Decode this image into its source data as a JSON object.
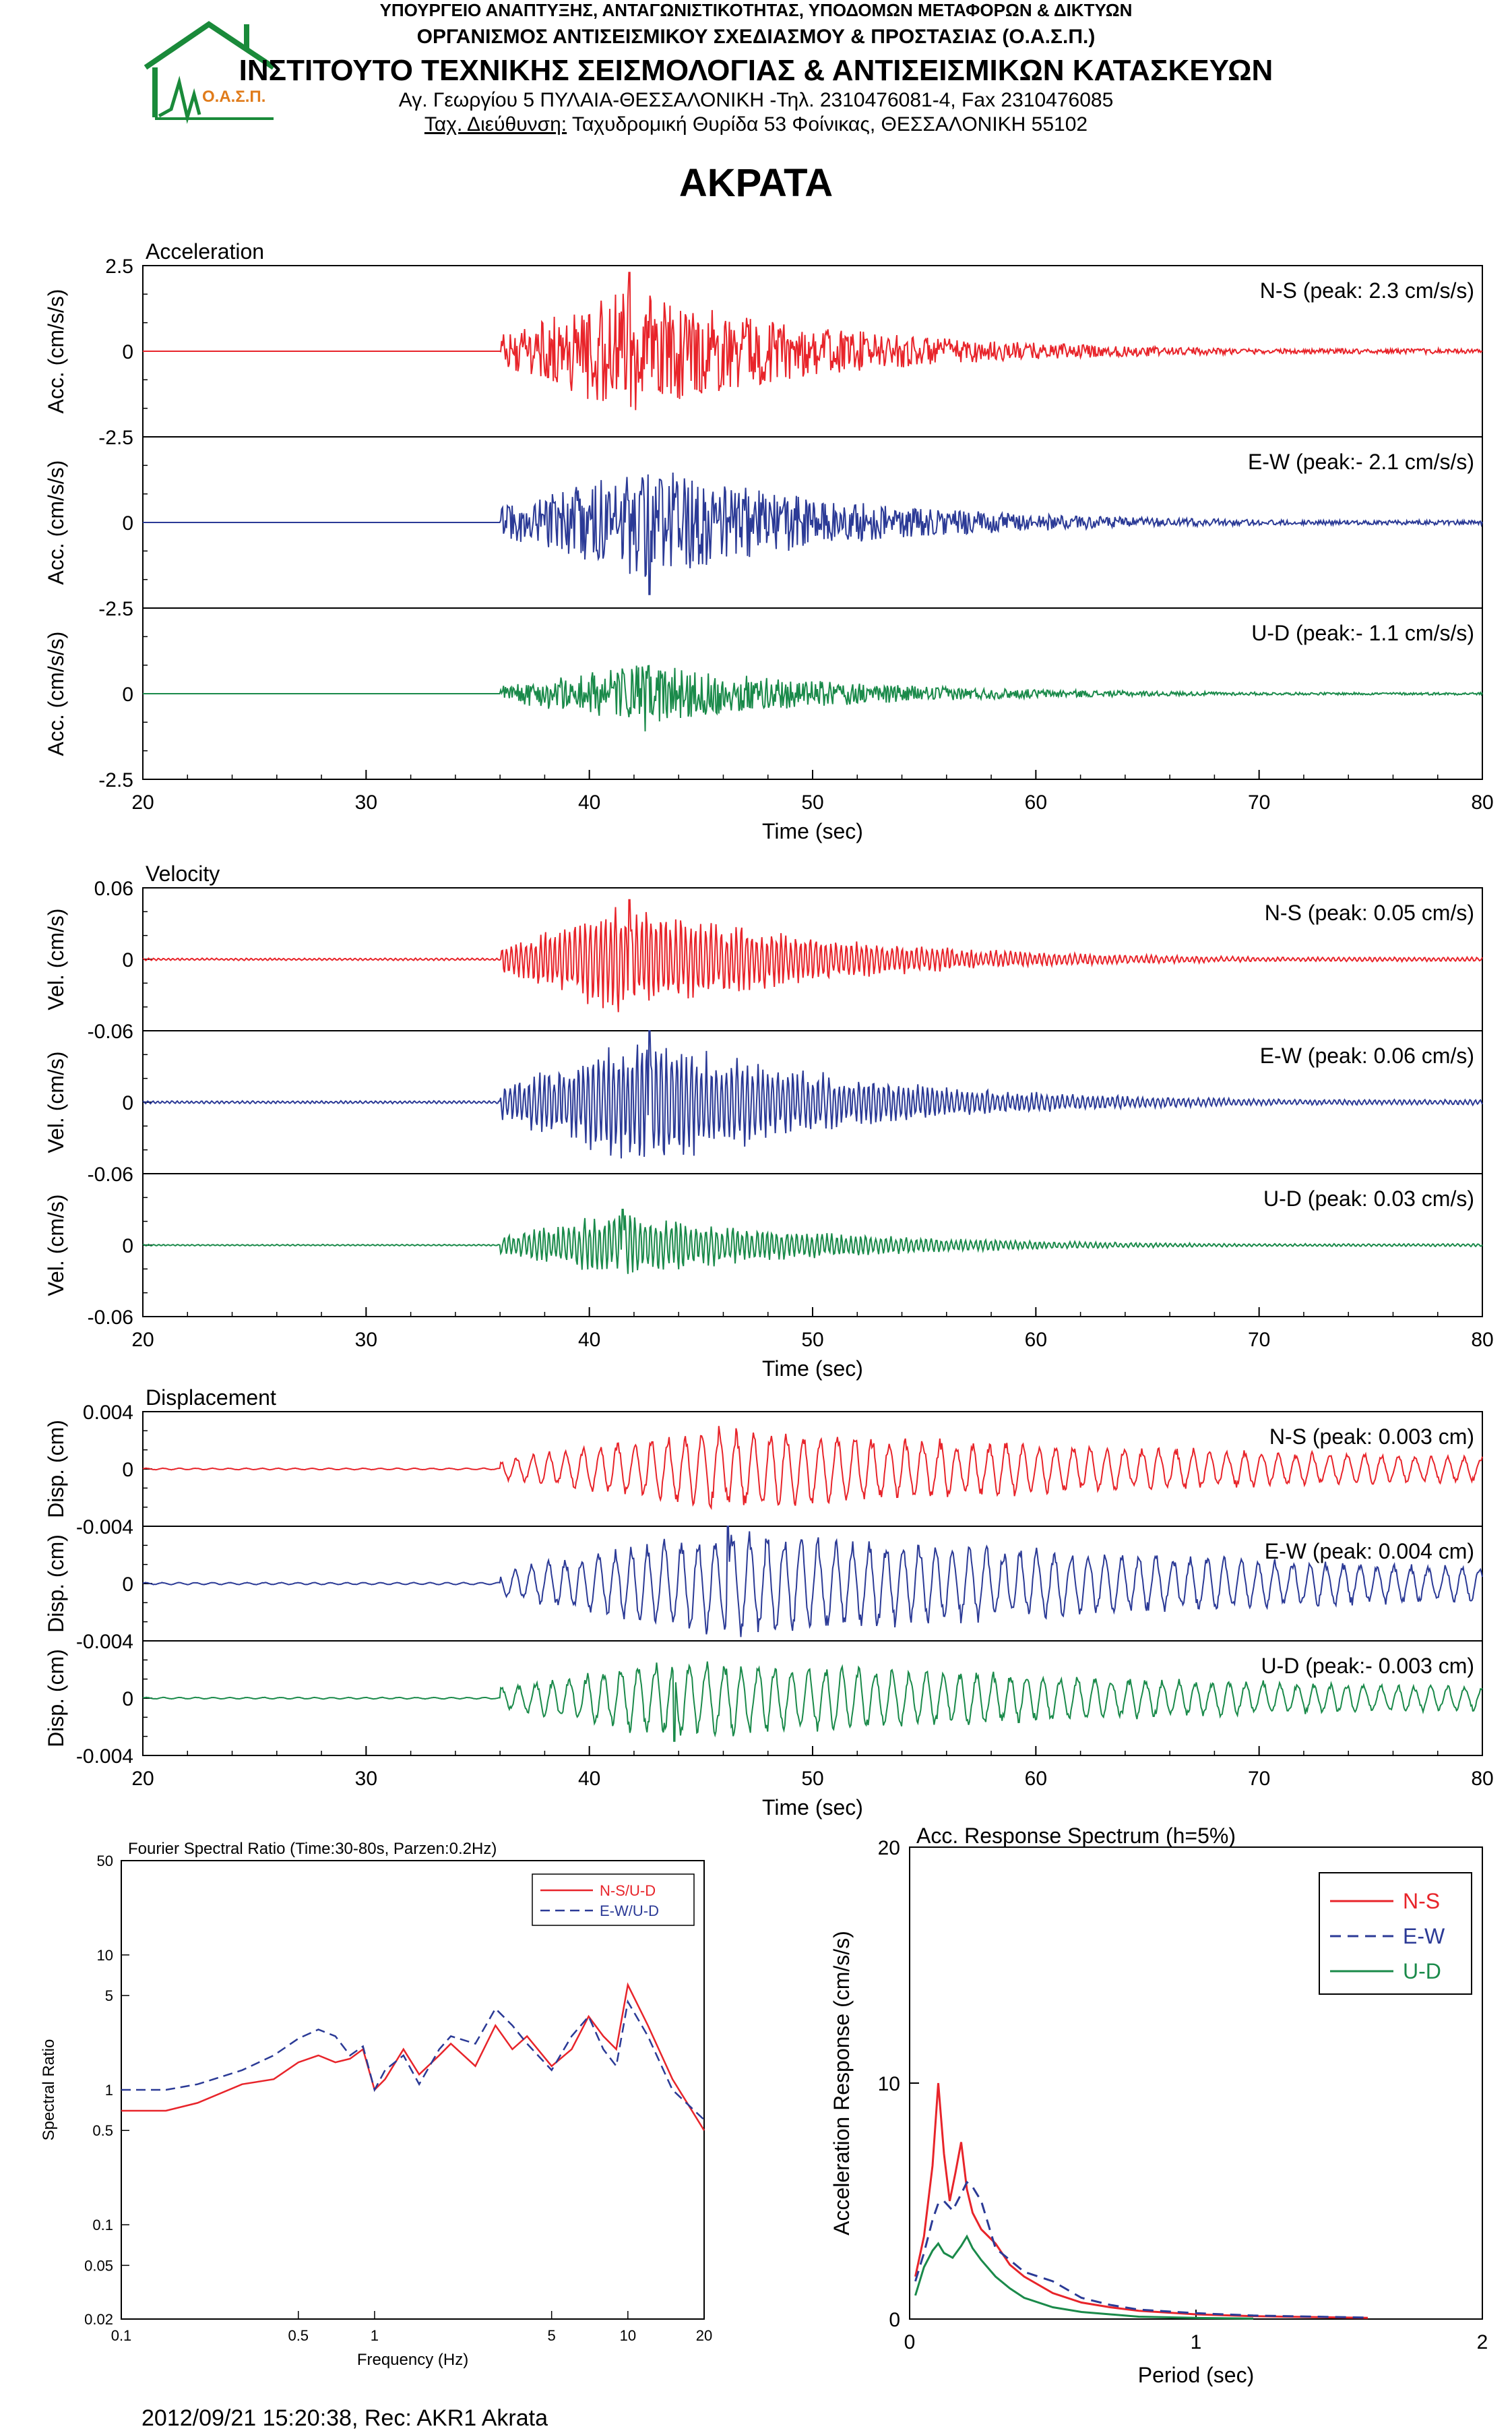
{
  "header": {
    "line1": "ΥΠΟΥΡΓΕΙΟ ΑΝΑΠΤΥΞΗΣ, ΑΝΤΑΓΩΝΙΣΤΙΚΟΤΗΤΑΣ, ΥΠΟΔΟΜΩΝ ΜΕΤΑΦΟΡΩΝ & ΔΙΚΤΥΩΝ",
    "line2": "ΟΡΓΑΝΙΣΜΟΣ ΑΝΤΙΣΕΙΣΜΙΚΟΥ ΣΧΕΔΙΑΣΜΟΥ & ΠΡΟΣΤΑΣΙΑΣ (Ο.Α.Σ.Π.)",
    "line3": "ΙΝΣΤΙΤΟΥΤΟ ΤΕΧΝΙΚΗΣ ΣΕΙΣΜΟΛΟΓΙΑΣ & ΑΝΤΙΣΕΙΣΜΙΚΩΝ ΚΑΤΑΣΚΕΥΩΝ",
    "line4": "Αγ. Γεωργίου 5 ΠΥΛΑΙΑ-ΘΕΣΣΑΛΟΝΙΚΗ -Τηλ. 2310476081-4,  Fax 2310476085",
    "line5_label": "Ταχ. Διεύθυνση:",
    "line5_value": " Ταχυδρομική Θυρίδα 53 Φοίνικας, ΘΕΣΣΑΛΟΝΙΚΗ 55102",
    "logo_text": "Ο.Α.Σ.Π.",
    "logo_color": "#1a8a3a",
    "logo_text_color": "#e07b1a"
  },
  "station": "ΑΚΡΑΤΑ",
  "footer": "2012/09/21 15:20:38, Rec: AKR1 Akrata",
  "colors": {
    "ns": "#e8242a",
    "ew": "#2b3a96",
    "ud": "#1a8a4a"
  },
  "chart_data": [
    {
      "type": "line",
      "title": "Acceleration",
      "xlabel": "Time (sec)",
      "ylabel": "Acc. (cm/s/s)",
      "xlim": [
        20,
        80
      ],
      "xticks": [
        "20",
        "30",
        "40",
        "50",
        "60",
        "70",
        "80"
      ],
      "rows": [
        {
          "name": "N-S",
          "label": "N-S (peak: 2.3 cm/s/s)",
          "ylim": [
            -2.5,
            2.5
          ],
          "yticks": [
            "2.5",
            "0",
            "-2.5"
          ],
          "peak": 2.3,
          "onset": 36,
          "peak_time": 41.8,
          "color": "#e8242a"
        },
        {
          "name": "E-W",
          "label": "E-W (peak:- 2.1 cm/s/s)",
          "ylim": [
            -2.5,
            2.5
          ],
          "yticks": [
            "0",
            "-2.5"
          ],
          "peak": -2.1,
          "onset": 36,
          "peak_time": 42.7,
          "color": "#2b3a96"
        },
        {
          "name": "U-D",
          "label": "U-D (peak:- 1.1 cm/s/s)",
          "ylim": [
            -2.5,
            2.5
          ],
          "yticks": [
            "0",
            "-2.5"
          ],
          "peak": -1.1,
          "onset": 36,
          "peak_time": 42.5,
          "color": "#1a8a4a"
        }
      ]
    },
    {
      "type": "line",
      "title": "Velocity",
      "xlabel": "Time (sec)",
      "ylabel": "Vel. (cm/s)",
      "xlim": [
        20,
        80
      ],
      "xticks": [
        "20",
        "30",
        "40",
        "50",
        "60",
        "70",
        "80"
      ],
      "rows": [
        {
          "name": "N-S",
          "label": "N-S (peak: 0.05 cm/s)",
          "ylim": [
            -0.06,
            0.06
          ],
          "yticks": [
            "0.06",
            "0",
            "-0.06"
          ],
          "peak": 0.05,
          "onset": 36,
          "peak_time": 41.8,
          "color": "#e8242a"
        },
        {
          "name": "E-W",
          "label": "E-W (peak: 0.06 cm/s)",
          "ylim": [
            -0.06,
            0.06
          ],
          "yticks": [
            "0",
            "-0.06"
          ],
          "peak": 0.06,
          "onset": 36,
          "peak_time": 42.7,
          "color": "#2b3a96"
        },
        {
          "name": "U-D",
          "label": "U-D (peak: 0.03 cm/s)",
          "ylim": [
            -0.06,
            0.06
          ],
          "yticks": [
            "0",
            "-0.06"
          ],
          "peak": 0.03,
          "onset": 36,
          "peak_time": 41.5,
          "color": "#1a8a4a"
        }
      ]
    },
    {
      "type": "line",
      "title": "Displacement",
      "xlabel": "Time (sec)",
      "ylabel": "Disp. (cm)",
      "xlim": [
        20,
        80
      ],
      "xticks": [
        "20",
        "30",
        "40",
        "50",
        "60",
        "70",
        "80"
      ],
      "rows": [
        {
          "name": "N-S",
          "label": "N-S (peak: 0.003 cm)",
          "ylim": [
            -0.004,
            0.004
          ],
          "yticks": [
            "0.004",
            "0",
            "-0.004"
          ],
          "peak": 0.003,
          "onset": 36,
          "peak_time": 45.8,
          "color": "#e8242a"
        },
        {
          "name": "E-W",
          "label": "E-W (peak: 0.004 cm)",
          "ylim": [
            -0.004,
            0.004
          ],
          "yticks": [
            "0",
            "-0.004"
          ],
          "peak": 0.004,
          "onset": 36,
          "peak_time": 46.2,
          "color": "#2b3a96"
        },
        {
          "name": "U-D",
          "label": "U-D (peak:- 0.003 cm)",
          "ylim": [
            -0.004,
            0.004
          ],
          "yticks": [
            "0",
            "-0.004"
          ],
          "peak": -0.003,
          "onset": 36,
          "peak_time": 43.8,
          "color": "#1a8a4a"
        }
      ]
    },
    {
      "type": "line",
      "title": "Fourier Spectral Ratio (Time:30-80s, Parzen:0.2Hz)",
      "xlabel": "Frequency (Hz)",
      "ylabel": "Spectral Ratio",
      "xscale": "log",
      "yscale": "log",
      "xlim": [
        0.1,
        20
      ],
      "ylim": [
        0.02,
        50
      ],
      "xticks": [
        "0.1",
        "0.5",
        "1",
        "5",
        "10",
        "20"
      ],
      "yticks": [
        "50",
        "10",
        "5",
        "1",
        "0.5",
        "0.1",
        "0.05",
        "0.02"
      ],
      "legend": "top-right",
      "series": [
        {
          "name": "N-S/U-D",
          "color": "#e8242a",
          "dash": false,
          "x": [
            0.1,
            0.15,
            0.2,
            0.3,
            0.4,
            0.5,
            0.6,
            0.7,
            0.8,
            0.9,
            1.0,
            1.1,
            1.3,
            1.5,
            1.8,
            2.0,
            2.5,
            3.0,
            3.5,
            4.0,
            5.0,
            6.0,
            7.0,
            8.0,
            9.0,
            10.0,
            12.0,
            15.0,
            20.0
          ],
          "y": [
            0.7,
            0.7,
            0.8,
            1.1,
            1.2,
            1.6,
            1.8,
            1.6,
            1.7,
            2.0,
            1.0,
            1.2,
            2.0,
            1.3,
            1.8,
            2.2,
            1.5,
            3.0,
            2.0,
            2.5,
            1.5,
            2.0,
            3.5,
            2.5,
            2.0,
            6.0,
            3.0,
            1.2,
            0.5
          ]
        },
        {
          "name": "E-W/U-D",
          "color": "#2b3a96",
          "dash": true,
          "x": [
            0.1,
            0.15,
            0.2,
            0.3,
            0.4,
            0.5,
            0.6,
            0.7,
            0.8,
            0.9,
            1.0,
            1.1,
            1.3,
            1.5,
            1.8,
            2.0,
            2.5,
            3.0,
            3.5,
            4.0,
            5.0,
            6.0,
            7.0,
            8.0,
            9.0,
            10.0,
            12.0,
            15.0,
            20.0
          ],
          "y": [
            1.0,
            1.0,
            1.1,
            1.4,
            1.8,
            2.4,
            2.8,
            2.5,
            1.8,
            2.1,
            1.0,
            1.4,
            1.8,
            1.1,
            2.0,
            2.5,
            2.2,
            4.0,
            3.0,
            2.2,
            1.4,
            2.5,
            3.5,
            2.0,
            1.5,
            4.5,
            2.5,
            1.0,
            0.6
          ]
        }
      ]
    },
    {
      "type": "line",
      "title": "Acc. Response Spectrum (h=5%)",
      "xlabel": "Period (sec)",
      "ylabel": "Acceleration Response (cm/s/s)",
      "xlim": [
        0,
        2
      ],
      "ylim": [
        0,
        20
      ],
      "xticks": [
        "0",
        "1",
        "2"
      ],
      "yticks": [
        "20",
        "10",
        "0"
      ],
      "legend": "top-right",
      "series": [
        {
          "name": "N-S",
          "color": "#e8242a",
          "dash": false,
          "x": [
            0.02,
            0.05,
            0.08,
            0.1,
            0.12,
            0.14,
            0.16,
            0.18,
            0.2,
            0.22,
            0.25,
            0.3,
            0.35,
            0.4,
            0.5,
            0.6,
            0.7,
            0.8,
            1.0,
            1.2,
            1.6
          ],
          "y": [
            1.8,
            3.5,
            6.5,
            10.0,
            7.0,
            5.0,
            6.2,
            7.5,
            5.5,
            4.5,
            3.8,
            3.2,
            2.3,
            1.8,
            1.1,
            0.7,
            0.5,
            0.35,
            0.2,
            0.12,
            0.05
          ]
        },
        {
          "name": "E-W",
          "color": "#2b3a96",
          "dash": true,
          "x": [
            0.02,
            0.05,
            0.08,
            0.1,
            0.12,
            0.15,
            0.18,
            0.2,
            0.22,
            0.25,
            0.28,
            0.3,
            0.35,
            0.4,
            0.5,
            0.6,
            0.7,
            0.8,
            1.0,
            1.2,
            1.6
          ],
          "y": [
            1.6,
            2.8,
            4.2,
            4.9,
            5.0,
            4.6,
            5.3,
            5.8,
            5.6,
            5.0,
            3.8,
            3.0,
            2.5,
            2.0,
            1.6,
            0.9,
            0.6,
            0.4,
            0.25,
            0.15,
            0.06
          ]
        },
        {
          "name": "U-D",
          "color": "#1a8a4a",
          "dash": false,
          "x": [
            0.02,
            0.05,
            0.08,
            0.1,
            0.12,
            0.15,
            0.18,
            0.2,
            0.22,
            0.25,
            0.3,
            0.35,
            0.4,
            0.5,
            0.6,
            0.7,
            0.8,
            1.0,
            1.2
          ],
          "y": [
            1.0,
            2.2,
            2.9,
            3.2,
            2.8,
            2.6,
            3.1,
            3.5,
            3.0,
            2.5,
            1.8,
            1.3,
            0.9,
            0.5,
            0.3,
            0.2,
            0.1,
            0.05,
            0.02
          ]
        }
      ]
    }
  ]
}
